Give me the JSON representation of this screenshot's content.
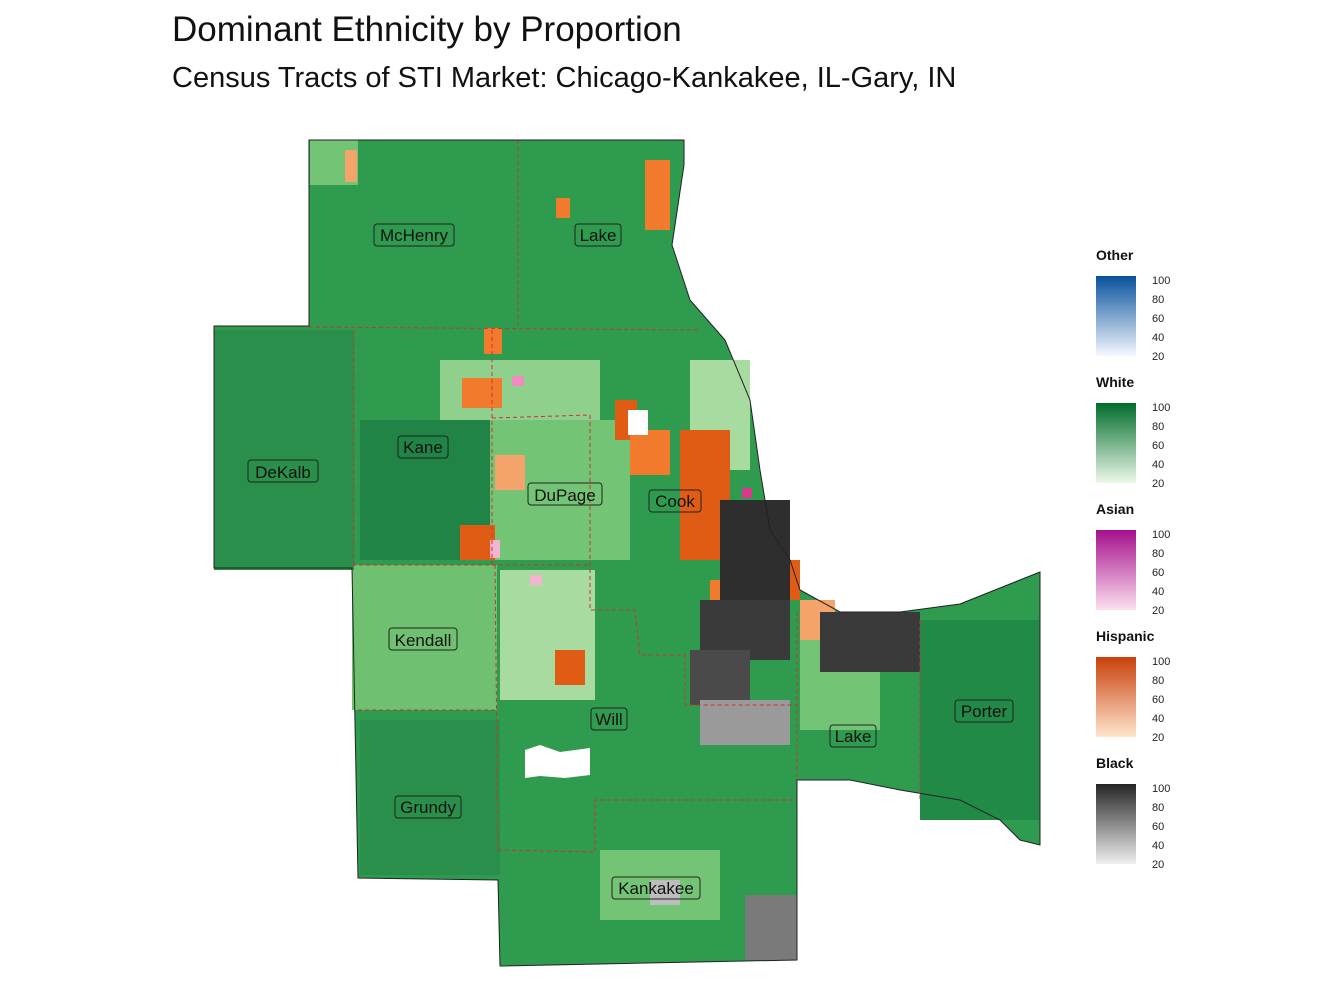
{
  "title": "Dominant Ethnicity by Proportion",
  "subtitle": "Census Tracts of STI Market: Chicago-Kankakee, IL-Gary, IN",
  "counties": [
    {
      "id": "mchenry",
      "label": "McHenry"
    },
    {
      "id": "lake-il",
      "label": "Lake"
    },
    {
      "id": "kane",
      "label": "Kane"
    },
    {
      "id": "dekalb",
      "label": "DeKalb"
    },
    {
      "id": "dupage",
      "label": "DuPage"
    },
    {
      "id": "cook",
      "label": "Cook"
    },
    {
      "id": "kendall",
      "label": "Kendall"
    },
    {
      "id": "will",
      "label": "Will"
    },
    {
      "id": "lake-in",
      "label": "Lake"
    },
    {
      "id": "porter",
      "label": "Porter"
    },
    {
      "id": "grundy",
      "label": "Grundy"
    },
    {
      "id": "kankakee",
      "label": "Kankakee"
    }
  ],
  "legend": [
    {
      "title": "Other",
      "colors": [
        "#f5f9ff",
        "#08519c"
      ],
      "ticks": [
        "100",
        "80",
        "60",
        "40",
        "20"
      ]
    },
    {
      "title": "White",
      "colors": [
        "#edf8e9",
        "#006d2c"
      ],
      "ticks": [
        "100",
        "80",
        "60",
        "40",
        "20"
      ]
    },
    {
      "title": "Asian",
      "colors": [
        "#fde0ef",
        "#a50f8c"
      ],
      "ticks": [
        "100",
        "80",
        "60",
        "40",
        "20"
      ]
    },
    {
      "title": "Hispanic",
      "colors": [
        "#fee6ce",
        "#c9400a"
      ],
      "ticks": [
        "100",
        "80",
        "60",
        "40",
        "20"
      ]
    },
    {
      "title": "Black",
      "colors": [
        "#f0f0f0",
        "#252525"
      ],
      "ticks": [
        "100",
        "80",
        "60",
        "40",
        "20"
      ]
    }
  ],
  "colors": {
    "white_dark": "#1f8a45",
    "white_mid": "#33a354",
    "white_light": "#74c476",
    "hispanic": "#f27a2c",
    "black": "#3a3a3a",
    "black_light": "#9a9a9a",
    "asian": "#f08bbf",
    "boundary": "#cc3333"
  }
}
